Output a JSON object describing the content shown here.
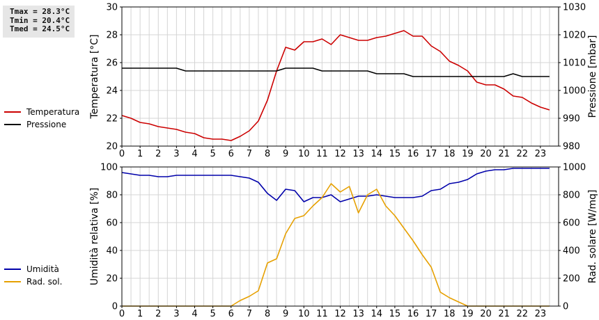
{
  "stats": {
    "tmax": "Tmax = 28.3°C",
    "tmin": "Tmin = 20.4°C",
    "tmed": "Tmed = 24.5°C"
  },
  "chart_data": [
    {
      "type": "line",
      "ylabel_left": "Temperatura [°C]",
      "ylabel_right": "Pressione [mbar]",
      "xlim": [
        0,
        24
      ],
      "ylim_left": [
        20,
        30
      ],
      "ylim_right": [
        980,
        1030
      ],
      "yticks_left": [
        20,
        22,
        24,
        26,
        28,
        30
      ],
      "yticks_right": [
        980,
        990,
        1000,
        1010,
        1020,
        1030
      ],
      "xticks": [
        0,
        1,
        2,
        3,
        4,
        5,
        6,
        7,
        8,
        9,
        10,
        11,
        12,
        13,
        14,
        15,
        16,
        17,
        18,
        19,
        20,
        21,
        22,
        23
      ],
      "grid": true,
      "legend_position": "left",
      "series": [
        {
          "name": "Temperatura",
          "color": "#cc0000",
          "axis": "left",
          "x": [
            0,
            0.5,
            1,
            1.5,
            2,
            2.5,
            3,
            3.5,
            4,
            4.5,
            5,
            5.5,
            6,
            6.5,
            7,
            7.5,
            8,
            8.5,
            9,
            9.5,
            10,
            10.5,
            11,
            11.5,
            12,
            12.5,
            13,
            13.5,
            14,
            14.5,
            15,
            15.5,
            16,
            16.5,
            17,
            17.5,
            18,
            18.5,
            19,
            19.5,
            20,
            20.5,
            21,
            21.5,
            22,
            22.5,
            23,
            23.5
          ],
          "values": [
            22.2,
            22.0,
            21.7,
            21.6,
            21.4,
            21.3,
            21.2,
            21.0,
            20.9,
            20.6,
            20.5,
            20.5,
            20.4,
            20.7,
            21.1,
            21.8,
            23.3,
            25.4,
            27.1,
            26.9,
            27.5,
            27.5,
            27.7,
            27.3,
            28.0,
            27.8,
            27.6,
            27.6,
            27.8,
            27.9,
            28.1,
            28.3,
            27.9,
            27.9,
            27.2,
            26.8,
            26.1,
            25.8,
            25.4,
            24.6,
            24.4,
            24.4,
            24.1,
            23.6,
            23.5,
            23.1,
            22.8,
            22.6
          ]
        },
        {
          "name": "Pressione",
          "color": "#000000",
          "axis": "right",
          "x": [
            0,
            0.5,
            1,
            1.5,
            2,
            2.5,
            3,
            3.5,
            4,
            4.5,
            5,
            5.5,
            6,
            6.5,
            7,
            7.5,
            8,
            8.5,
            9,
            9.5,
            10,
            10.5,
            11,
            11.5,
            12,
            12.5,
            13,
            13.5,
            14,
            14.5,
            15,
            15.5,
            16,
            16.5,
            17,
            17.5,
            18,
            18.5,
            19,
            19.5,
            20,
            20.5,
            21,
            21.5,
            22,
            22.5,
            23,
            23.5
          ],
          "values": [
            1008,
            1008,
            1008,
            1008,
            1008,
            1008,
            1008,
            1007,
            1007,
            1007,
            1007,
            1007,
            1007,
            1007,
            1007,
            1007,
            1007,
            1007,
            1008,
            1008,
            1008,
            1008,
            1007,
            1007,
            1007,
            1007,
            1007,
            1007,
            1006,
            1006,
            1006,
            1006,
            1005,
            1005,
            1005,
            1005,
            1005,
            1005,
            1005,
            1005,
            1005,
            1005,
            1005,
            1006,
            1005,
            1005,
            1005,
            1005
          ]
        }
      ]
    },
    {
      "type": "line",
      "ylabel_left": "Umidità relativa [%]",
      "ylabel_right": "Rad. solare [W/mq]",
      "xlim": [
        0,
        24
      ],
      "ylim_left": [
        0,
        100
      ],
      "ylim_right": [
        0,
        1000
      ],
      "yticks_left": [
        0,
        20,
        40,
        60,
        80,
        100
      ],
      "yticks_right": [
        0,
        200,
        400,
        600,
        800,
        1000
      ],
      "xticks": [
        0,
        1,
        2,
        3,
        4,
        5,
        6,
        7,
        8,
        9,
        10,
        11,
        12,
        13,
        14,
        15,
        16,
        17,
        18,
        19,
        20,
        21,
        22,
        23
      ],
      "grid": true,
      "legend_position": "left",
      "series": [
        {
          "name": "Umidità",
          "color": "#0000aa",
          "axis": "left",
          "x": [
            0,
            0.5,
            1,
            1.5,
            2,
            2.5,
            3,
            3.5,
            4,
            4.5,
            5,
            5.5,
            6,
            6.5,
            7,
            7.5,
            8,
            8.5,
            9,
            9.5,
            10,
            10.5,
            11,
            11.5,
            12,
            12.5,
            13,
            13.5,
            14,
            14.5,
            15,
            15.5,
            16,
            16.5,
            17,
            17.5,
            18,
            18.5,
            19,
            19.5,
            20,
            20.5,
            21,
            21.5,
            22,
            22.5,
            23,
            23.5
          ],
          "values": [
            96,
            95,
            94,
            94,
            93,
            93,
            94,
            94,
            94,
            94,
            94,
            94,
            94,
            93,
            92,
            89,
            81,
            76,
            84,
            83,
            75,
            78,
            78,
            80,
            75,
            77,
            79,
            79,
            80,
            79,
            78,
            78,
            78,
            79,
            83,
            84,
            88,
            89,
            91,
            95,
            97,
            98,
            98,
            99,
            99,
            99,
            99,
            99
          ]
        },
        {
          "name": "Rad. sol.",
          "color": "#e6a000",
          "axis": "right",
          "x": [
            0,
            0.5,
            1,
            1.5,
            2,
            2.5,
            3,
            3.5,
            4,
            4.5,
            5,
            5.5,
            6,
            6.5,
            7,
            7.5,
            8,
            8.5,
            9,
            9.5,
            10,
            10.5,
            11,
            11.5,
            12,
            12.5,
            13,
            13.5,
            14,
            14.5,
            15,
            15.5,
            16,
            16.5,
            17,
            17.5,
            18,
            18.5,
            19,
            19.5,
            20,
            20.5,
            21,
            21.5,
            22,
            22.5,
            23,
            23.5
          ],
          "values": [
            0,
            0,
            0,
            0,
            0,
            0,
            0,
            0,
            0,
            0,
            0,
            0,
            0,
            40,
            70,
            110,
            310,
            340,
            520,
            630,
            650,
            720,
            780,
            880,
            820,
            860,
            670,
            800,
            840,
            720,
            650,
            560,
            470,
            370,
            280,
            100,
            60,
            30,
            0,
            0,
            0,
            0,
            0,
            0,
            0,
            0,
            0,
            0
          ]
        }
      ]
    }
  ]
}
